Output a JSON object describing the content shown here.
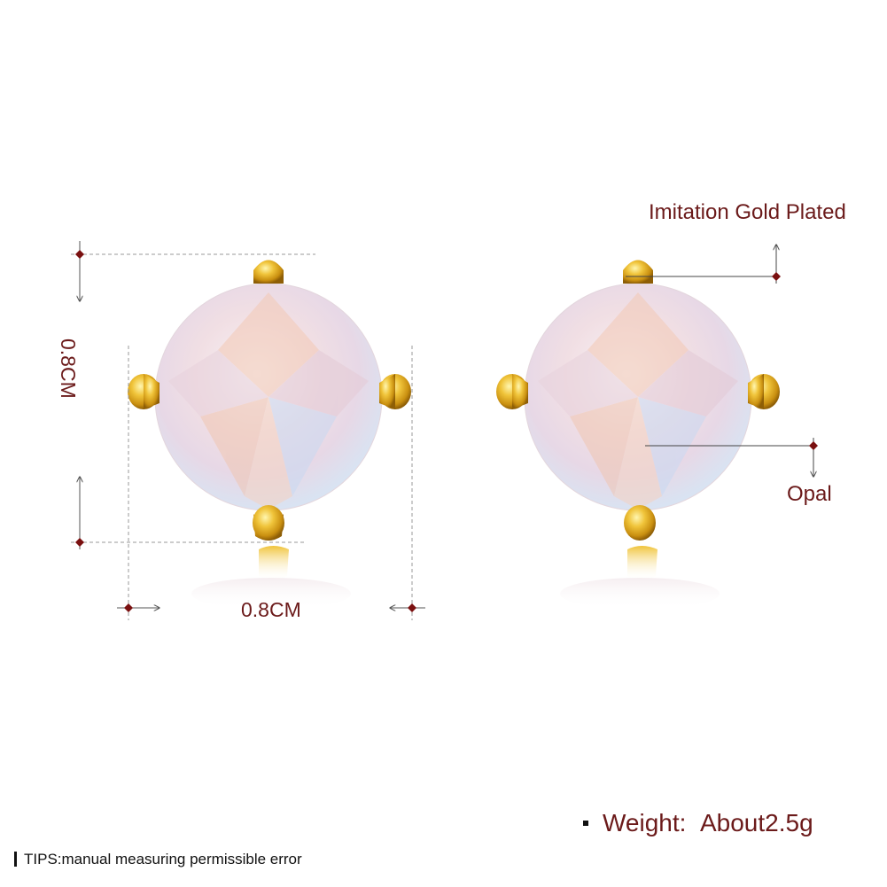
{
  "dimensions": {
    "width_label": "0.8CM",
    "height_label": "0.8CM"
  },
  "callouts": {
    "plating": "Imitation Gold Plated",
    "stone": "Opal"
  },
  "weight": {
    "label": "Weight:",
    "value": "About2.5g"
  },
  "tips": "TIPS:manual measuring permissible error",
  "colors": {
    "text_accent": "#6b1a1a",
    "gold": "#d9a520",
    "opal": "#f4e6e9"
  }
}
